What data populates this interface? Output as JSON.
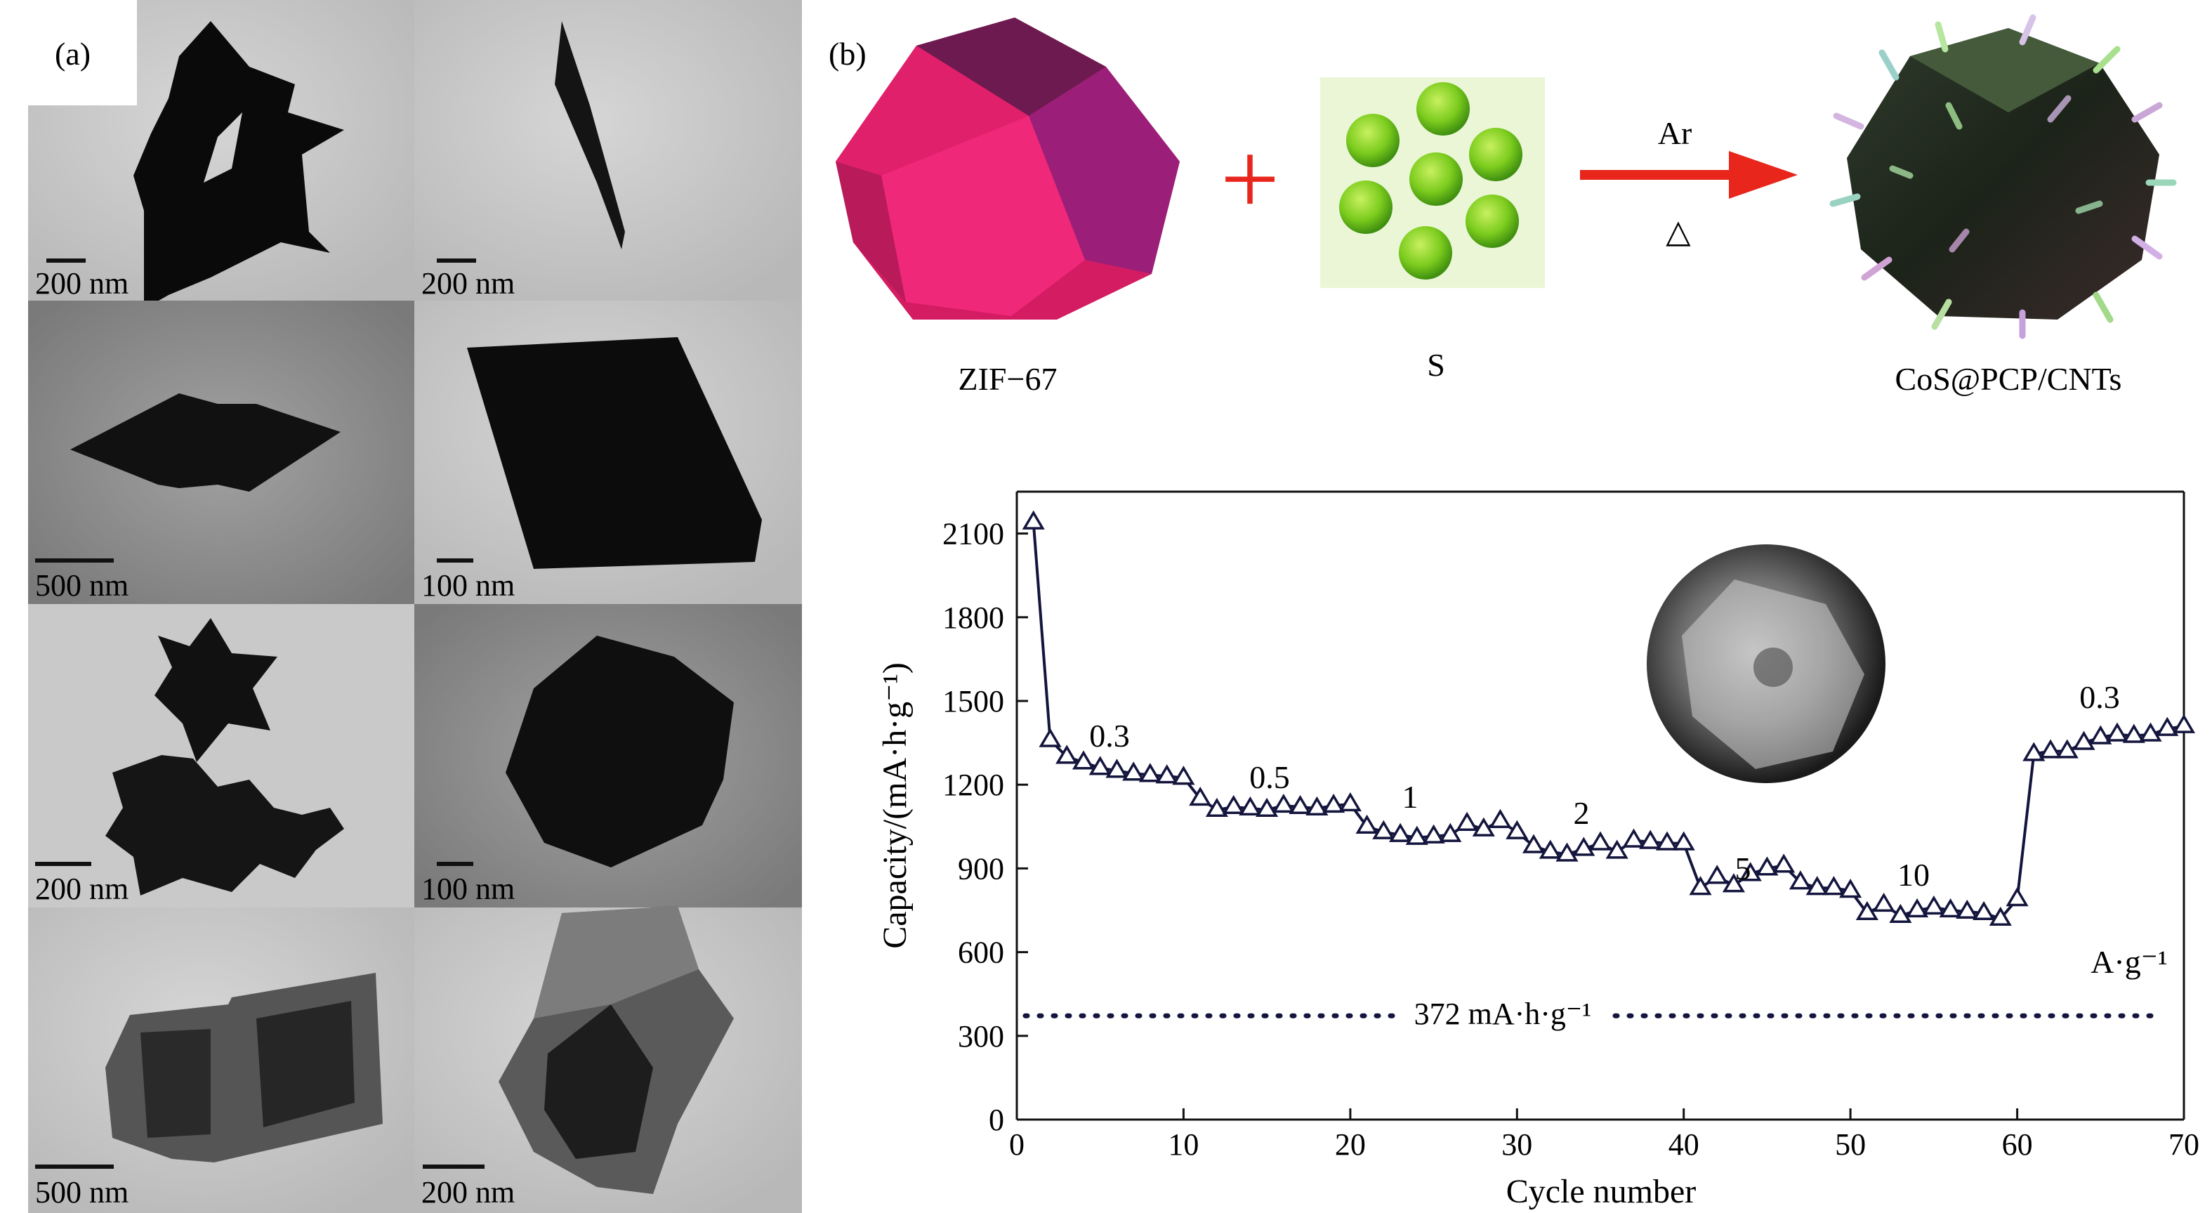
{
  "panel_a": {
    "label": "(a)",
    "scale_bars": [
      "200 nm",
      "200 nm",
      "500 nm",
      "100 nm",
      "200 nm",
      "100 nm",
      "500 nm",
      "200 nm"
    ]
  },
  "panel_b": {
    "label": "(b)",
    "scheme": {
      "reactant_1": "ZIF−67",
      "plus": "+",
      "reactant_2": "S",
      "condition_top": "Ar",
      "condition_bottom": "△",
      "product": "CoS@PCP/CNTs"
    }
  },
  "colors": {
    "data": "#14153d",
    "arrow": "#e8261c",
    "zif": "#e0206a",
    "sulfur": "#8ed82a"
  },
  "chart_data": {
    "type": "line",
    "xlabel": "Cycle number",
    "ylabel": "Capacity/(mA·h·g⁻¹)",
    "xlim": [
      0,
      70
    ],
    "ylim": [
      0,
      2250
    ],
    "x_ticks": [
      "0",
      "10",
      "20",
      "30",
      "40",
      "50",
      "60",
      "70"
    ],
    "y_ticks": [
      "0",
      "300",
      "600",
      "900",
      "1200",
      "1500",
      "1800",
      "2100"
    ],
    "grid": false,
    "marker": "open-triangle",
    "series": [
      {
        "x": [
          1,
          2,
          3,
          4,
          5,
          6,
          7,
          8,
          9,
          10,
          11,
          12,
          13,
          14,
          15,
          16,
          17,
          18,
          19,
          20,
          21,
          22,
          23,
          24,
          25,
          26,
          27,
          28,
          29,
          30,
          31,
          32,
          33,
          34,
          35,
          36,
          37,
          38,
          39,
          40,
          41,
          42,
          43,
          44,
          45,
          46,
          47,
          48,
          49,
          50,
          51,
          52,
          53,
          54,
          55,
          56,
          57,
          58,
          59,
          60,
          61,
          62,
          63,
          64,
          65,
          66,
          67,
          68,
          69,
          70
        ],
        "y": [
          2140,
          1360,
          1300,
          1280,
          1260,
          1250,
          1240,
          1235,
          1230,
          1225,
          1150,
          1110,
          1120,
          1115,
          1110,
          1125,
          1120,
          1115,
          1125,
          1130,
          1050,
          1030,
          1020,
          1010,
          1015,
          1020,
          1060,
          1040,
          1070,
          1030,
          980,
          960,
          950,
          970,
          990,
          960,
          1000,
          995,
          990,
          990,
          830,
          870,
          840,
          880,
          900,
          910,
          850,
          830,
          830,
          820,
          740,
          770,
          730,
          750,
          760,
          750,
          745,
          740,
          720,
          790,
          1310,
          1320,
          1320,
          1350,
          1370,
          1380,
          1375,
          1380,
          1400,
          1410
        ]
      }
    ],
    "reference_line": {
      "y": 372,
      "label": "372 mA·h·g⁻¹"
    },
    "annotations": [
      "0.3",
      "0.5",
      "1",
      "2",
      "5",
      "10",
      "0.3",
      "A·g⁻¹"
    ]
  }
}
